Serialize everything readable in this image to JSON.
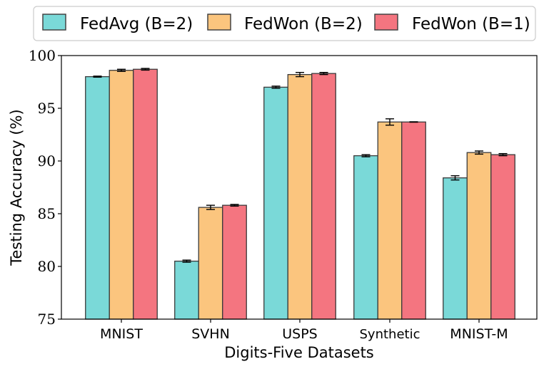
{
  "chart_data": {
    "type": "bar",
    "title": "",
    "xlabel": "Digits-Five Datasets",
    "ylabel": "Testing Accuracy (%)",
    "ylim": [
      75,
      100
    ],
    "yticks": [
      "75",
      "80",
      "85",
      "90",
      "95",
      "100"
    ],
    "categories": [
      "MNIST",
      "SVHN",
      "USPS",
      "Synthetic",
      "MNIST-M"
    ],
    "legend_position": "top",
    "series": [
      {
        "name": "FedAvg (B=2)",
        "color": "#7ad9d8",
        "values": [
          98.0,
          80.5,
          97.0,
          90.5,
          88.4
        ],
        "errors": [
          0.05,
          0.1,
          0.1,
          0.1,
          0.2
        ]
      },
      {
        "name": "FedWon (B=2)",
        "color": "#fbc57e",
        "values": [
          98.6,
          85.6,
          98.2,
          93.7,
          90.8
        ],
        "errors": [
          0.1,
          0.2,
          0.2,
          0.3,
          0.15
        ]
      },
      {
        "name": "FedWon (B=1)",
        "color": "#f47580",
        "values": [
          98.7,
          85.8,
          98.3,
          93.7,
          90.6
        ],
        "errors": [
          0.08,
          0.08,
          0.1,
          0.02,
          0.1
        ]
      }
    ]
  }
}
